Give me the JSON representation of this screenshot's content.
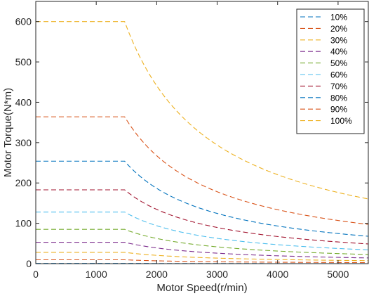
{
  "chart_data": {
    "type": "line",
    "xlabel": "Motor Speed(r/min)",
    "ylabel": "Motor Torque(N*m)",
    "xlim": [
      0,
      5500
    ],
    "ylim": [
      0,
      650
    ],
    "xticks": [
      0,
      1000,
      2000,
      3000,
      4000,
      5000
    ],
    "yticks": [
      0,
      100,
      200,
      300,
      400,
      500,
      600
    ],
    "grid": false,
    "legend_position": "top-right",
    "line_style": "dashed",
    "base_speed": 1470,
    "series": [
      {
        "name": "10%",
        "color": "#0072BD",
        "x": [
          0,
          1470,
          2000,
          3000,
          4000,
          5000,
          5500
        ],
        "y": [
          0.6,
          0.6,
          0.44,
          0.29,
          0.22,
          0.18,
          0.16
        ]
      },
      {
        "name": "20%",
        "color": "#D95319",
        "x": [
          0,
          1470,
          2000,
          3000,
          4000,
          5000,
          5500
        ],
        "y": [
          9.6,
          9.6,
          7.1,
          4.7,
          3.5,
          2.8,
          2.6
        ]
      },
      {
        "name": "30%",
        "color": "#EDB120",
        "x": [
          0,
          1470,
          2000,
          3000,
          4000,
          5000,
          5500
        ],
        "y": [
          28,
          28,
          20.6,
          13.7,
          10.3,
          8.2,
          7.5
        ]
      },
      {
        "name": "40%",
        "color": "#7E2F8E",
        "x": [
          0,
          1470,
          2000,
          3000,
          4000,
          5000,
          5500
        ],
        "y": [
          53,
          53,
          39,
          26,
          19.5,
          15.6,
          14.2
        ]
      },
      {
        "name": "50%",
        "color": "#77AC30",
        "x": [
          0,
          1470,
          2000,
          3000,
          4000,
          5000,
          5500
        ],
        "y": [
          85,
          85,
          62.5,
          41.7,
          31.2,
          25,
          22.7
        ]
      },
      {
        "name": "60%",
        "color": "#4DBEEE",
        "x": [
          0,
          1470,
          2000,
          3000,
          4000,
          5000,
          5500
        ],
        "y": [
          128,
          128,
          94,
          62.7,
          47,
          37.6,
          34.2
        ]
      },
      {
        "name": "70%",
        "color": "#A2142F",
        "x": [
          0,
          1470,
          2000,
          3000,
          4000,
          5000,
          5500
        ],
        "y": [
          183,
          183,
          134.5,
          89.7,
          67.2,
          53.8,
          48.9
        ]
      },
      {
        "name": "80%",
        "color": "#0072BD",
        "x": [
          0,
          1470,
          2000,
          3000,
          4000,
          5000,
          5500
        ],
        "y": [
          254,
          254,
          186.7,
          124.5,
          93.3,
          74.7,
          67.9
        ]
      },
      {
        "name": "90%",
        "color": "#D95319",
        "x": [
          0,
          1470,
          2000,
          3000,
          4000,
          5000,
          5500
        ],
        "y": [
          364,
          364,
          267.5,
          178.4,
          133.8,
          107,
          97.3
        ]
      },
      {
        "name": "100%",
        "color": "#EDB120",
        "x": [
          0,
          1470,
          2000,
          3000,
          4000,
          5000,
          5500
        ],
        "y": [
          600,
          600,
          441,
          294,
          220.5,
          176.4,
          160.4
        ]
      }
    ]
  }
}
